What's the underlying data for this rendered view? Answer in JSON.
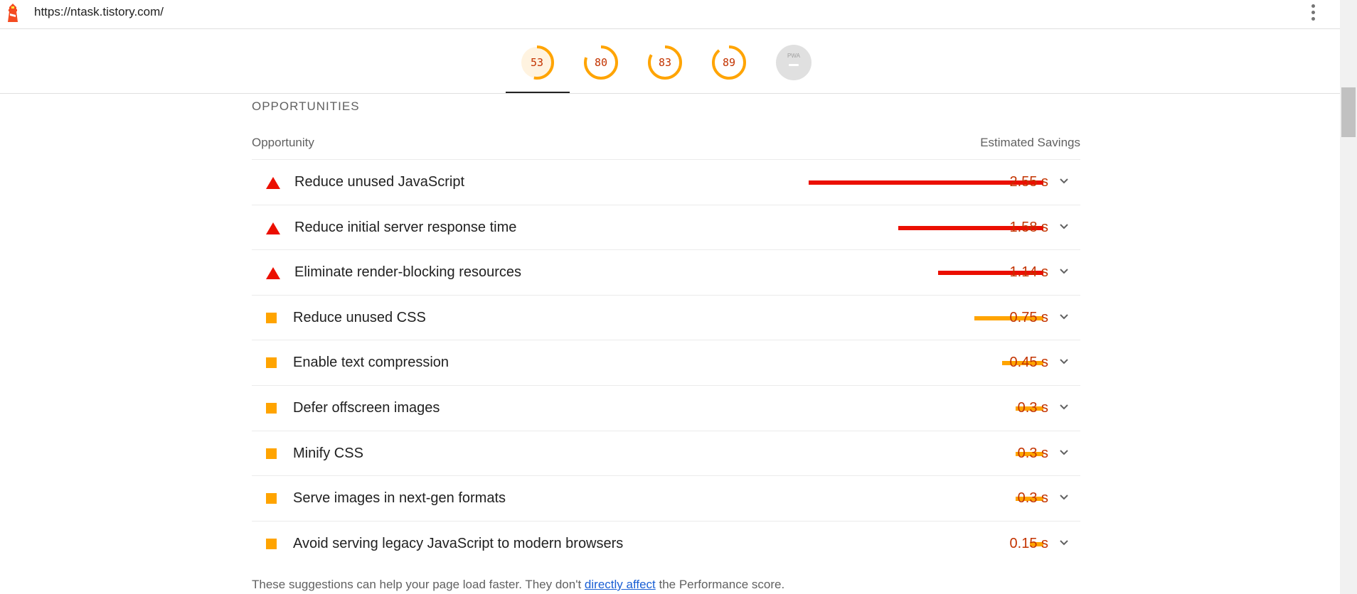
{
  "header": {
    "url": "https://ntask.tistory.com/"
  },
  "gauges": [
    {
      "score": "53",
      "fraction": 0.53,
      "color": "#ffa400"
    },
    {
      "score": "80",
      "fraction": 0.8,
      "color": "#ffa400"
    },
    {
      "score": "83",
      "fraction": 0.83,
      "color": "#ffa400"
    },
    {
      "score": "89",
      "fraction": 0.89,
      "color": "#ffa400"
    }
  ],
  "pwa": {
    "label": "PWA"
  },
  "section": {
    "title": "OPPORTUNITIES",
    "col_opportunity": "Opportunity",
    "col_savings": "Estimated Savings"
  },
  "opportunities": [
    {
      "label": "Reduce unused JavaScript",
      "savings": "2.55 s",
      "seconds": 2.55,
      "severity": "fail",
      "color": "#eb0f00"
    },
    {
      "label": "Reduce initial server response time",
      "savings": "1.58 s",
      "seconds": 1.58,
      "severity": "fail",
      "color": "#eb0f00"
    },
    {
      "label": "Eliminate render-blocking resources",
      "savings": "1.14 s",
      "seconds": 1.14,
      "severity": "fail",
      "color": "#eb0f00"
    },
    {
      "label": "Reduce unused CSS",
      "savings": "0.75 s",
      "seconds": 0.75,
      "severity": "average",
      "color": "#ffa400"
    },
    {
      "label": "Enable text compression",
      "savings": "0.45 s",
      "seconds": 0.45,
      "severity": "average",
      "color": "#ffa400"
    },
    {
      "label": "Defer offscreen images",
      "savings": "0.3 s",
      "seconds": 0.3,
      "severity": "average",
      "color": "#ffa400"
    },
    {
      "label": "Minify CSS",
      "savings": "0.3 s",
      "seconds": 0.3,
      "severity": "average",
      "color": "#ffa400"
    },
    {
      "label": "Serve images in next-gen formats",
      "savings": "0.3 s",
      "seconds": 0.3,
      "severity": "average",
      "color": "#ffa400"
    },
    {
      "label": "Avoid serving legacy JavaScript to modern browsers",
      "savings": "0.15 s",
      "seconds": 0.15,
      "severity": "average",
      "color": "#ffa400"
    }
  ],
  "footer": {
    "note_before": "These suggestions can help your page load faster. They don't ",
    "note_link": "directly affect",
    "note_after": " the Performance score."
  }
}
